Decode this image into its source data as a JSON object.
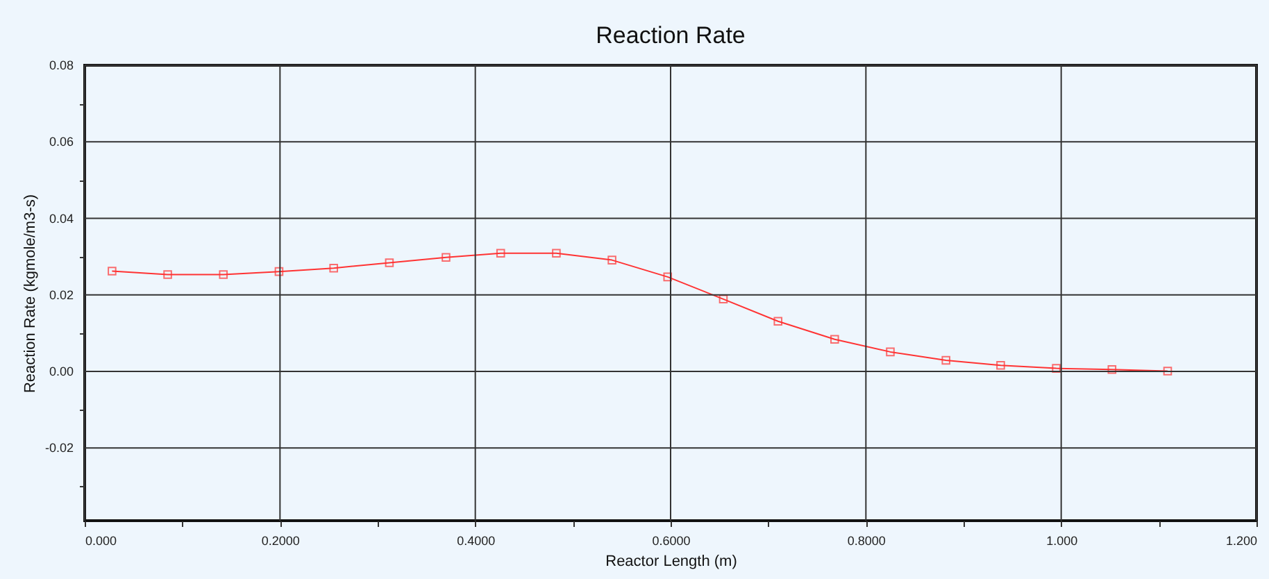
{
  "chart_data": {
    "type": "line",
    "title": "Reaction Rate",
    "xlabel": "Reactor Length (m)",
    "ylabel": "Reaction Rate (kgmole/m3-s)",
    "x": [
      0.028,
      0.085,
      0.142,
      0.199,
      0.255,
      0.312,
      0.37,
      0.426,
      0.483,
      0.54,
      0.597,
      0.654,
      0.71,
      0.768,
      0.825,
      0.882,
      0.938,
      0.995,
      1.052,
      1.109
    ],
    "series": [
      {
        "color": "#ff3333",
        "values": [
          0.0262,
          0.0253,
          0.0253,
          0.0261,
          0.027,
          0.0284,
          0.0298,
          0.0309,
          0.0309,
          0.0291,
          0.0247,
          0.0189,
          0.0131,
          0.0084,
          0.0051,
          0.0029,
          0.0016,
          0.0008,
          0.0005,
          0.0001
        ]
      }
    ],
    "xlim": [
      0,
      1.2
    ],
    "xticks": [
      {
        "value": 0,
        "label": "0.000"
      },
      {
        "value": 0.1,
        "label": null
      },
      {
        "value": 0.2,
        "label": "0.2000"
      },
      {
        "value": 0.3,
        "label": null
      },
      {
        "value": 0.4,
        "label": "0.4000"
      },
      {
        "value": 0.5,
        "label": null
      },
      {
        "value": 0.6,
        "label": "0.6000"
      },
      {
        "value": 0.7,
        "label": null
      },
      {
        "value": 0.8,
        "label": "0.8000"
      },
      {
        "value": 0.9,
        "label": null
      },
      {
        "value": 1.0,
        "label": "1.000"
      },
      {
        "value": 1.1,
        "label": null
      },
      {
        "value": 1.2,
        "label": "1.200"
      }
    ],
    "ylim": [
      -0.039,
      0.08
    ],
    "yticks": [
      {
        "value": -0.03,
        "label": null
      },
      {
        "value": -0.02,
        "label": "-0.02"
      },
      {
        "value": -0.01,
        "label": null
      },
      {
        "value": 0,
        "label": "0.00"
      },
      {
        "value": 0.01,
        "label": null
      },
      {
        "value": 0.02,
        "label": "0.02"
      },
      {
        "value": 0.03,
        "label": null
      },
      {
        "value": 0.04,
        "label": "0.04"
      },
      {
        "value": 0.05,
        "label": null
      },
      {
        "value": 0.06,
        "label": "0.06"
      },
      {
        "value": 0.07,
        "label": null
      },
      {
        "value": 0.08,
        "label": "0.08"
      }
    ],
    "grid": true,
    "marker": "square",
    "line_style": "solid"
  }
}
